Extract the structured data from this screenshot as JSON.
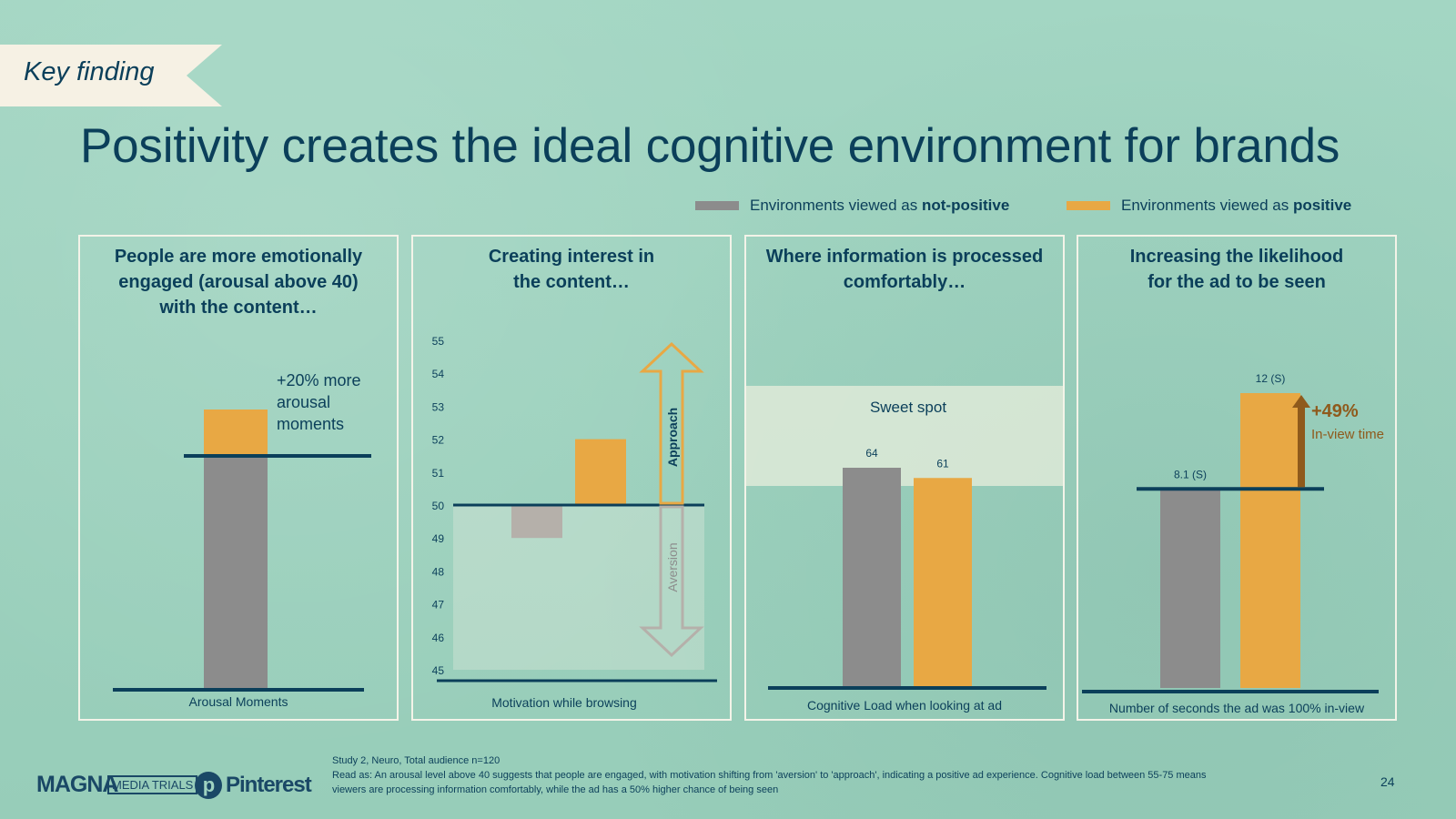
{
  "tag": "Key finding",
  "title": "Positivity creates the ideal cognitive environment for brands",
  "legend": {
    "not_positive": {
      "prefix": "Environments viewed as ",
      "bold": "not-positive"
    },
    "positive": {
      "prefix": "Environments viewed as ",
      "bold": "positive"
    }
  },
  "colors": {
    "not_positive": "#8c8c8c",
    "positive": "#e8a844",
    "navy": "#0b3f5a",
    "arrow_brown": "#8f5a1c"
  },
  "panels": [
    {
      "title_lines": [
        "People are more emotionally",
        "engaged (arousal above 40)",
        "with the content…"
      ],
      "axis_label": "Arousal Moments"
    },
    {
      "title_lines": [
        "Creating interest in",
        "the content…"
      ],
      "axis_label": "Motivation while browsing"
    },
    {
      "title_lines": [
        "Where information is processed",
        "comfortably…"
      ],
      "axis_label": "Cognitive Load when looking at ad"
    },
    {
      "title_lines": [
        "Increasing the likelihood",
        "for the ad to be seen"
      ],
      "axis_label": "Number of seconds the ad was 100% in-view"
    }
  ],
  "chart_data": [
    {
      "type": "bar",
      "xlabel": "Arousal Moments",
      "series": [
        {
          "name": "Environments viewed as not-positive",
          "values": [
            100
          ]
        },
        {
          "name": "Environments viewed as positive",
          "values": [
            120
          ]
        }
      ],
      "annotation": [
        "+20% more",
        "arousal",
        "moments"
      ]
    },
    {
      "type": "bar",
      "xlabel": "Motivation while browsing",
      "ylim": [
        45,
        55
      ],
      "yticks": [
        55,
        54,
        53,
        52,
        51,
        50,
        49,
        48,
        47,
        46,
        45
      ],
      "baseline": 50,
      "series": [
        {
          "name": "Environments viewed as not-positive",
          "values": [
            49
          ]
        },
        {
          "name": "Environments viewed as positive",
          "values": [
            52
          ]
        }
      ],
      "annotations": [
        "Approach",
        "Aversion"
      ]
    },
    {
      "type": "bar",
      "xlabel": "Cognitive Load when looking at ad",
      "band_label": "Sweet spot",
      "band_range": [
        55,
        75
      ],
      "series": [
        {
          "name": "Environments viewed as not-positive",
          "values": [
            64
          ],
          "label": "64"
        },
        {
          "name": "Environments viewed as positive",
          "values": [
            61
          ],
          "label": "61"
        }
      ]
    },
    {
      "type": "bar",
      "xlabel": "Number of seconds the ad was 100% in-view",
      "series": [
        {
          "name": "Environments viewed as not-positive",
          "values": [
            8.1
          ],
          "label": "8.1 (S)"
        },
        {
          "name": "Environments viewed as positive",
          "values": [
            12
          ],
          "label": "12 (S)"
        }
      ],
      "annotation": {
        "value": "+49%",
        "text": "In-view time"
      }
    }
  ],
  "footer": {
    "study": "Study 2, Neuro, Total audience n=120",
    "read_as": "Read as: An arousal level above 40 suggests that people are engaged, with motivation shifting from 'aversion' to 'approach', indicating a positive ad experience. Cognitive load between 55-75 means viewers are processing information comfortably, while the ad has a 50% higher chance of being seen"
  },
  "logos": {
    "magna": "MAGNA",
    "trials": "MEDIA TRIALS",
    "pinterest": "Pinterest"
  },
  "page_number": "24"
}
